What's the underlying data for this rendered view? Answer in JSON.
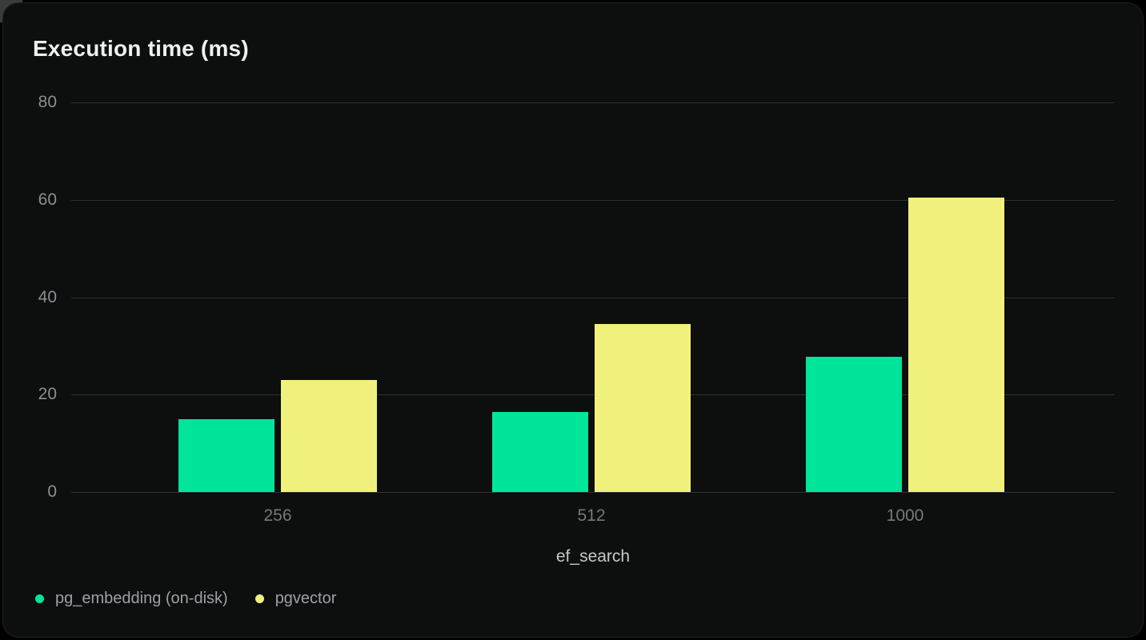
{
  "chart_data": {
    "type": "bar",
    "title": "Execution time (ms)",
    "categories": [
      "256",
      "512",
      "1000"
    ],
    "series": [
      {
        "name": "pg_embedding (on-disk)",
        "color": "#00e59a",
        "values": [
          15,
          16.4,
          27.7
        ]
      },
      {
        "name": "pgvector",
        "color": "#f0f17c",
        "values": [
          23,
          34.5,
          60.5
        ]
      }
    ],
    "xlabel": "ef_search",
    "ylabel": "",
    "ylim": [
      0,
      80
    ],
    "yticks": [
      80,
      60,
      40,
      20,
      0
    ],
    "grid": true,
    "legend_position": "bottom-left"
  },
  "colors": {
    "card_background": "#0d0e0e",
    "grid": "#2e3031",
    "title_text": "#eef0f1",
    "y_tick_text": "#8b8e94",
    "x_tick_text": "#75787e",
    "x_axis_label_text": "#c6c8ca",
    "legend_text": "#9da0a6",
    "series_green": "#00e59a",
    "series_yellow": "#f0f17c"
  }
}
